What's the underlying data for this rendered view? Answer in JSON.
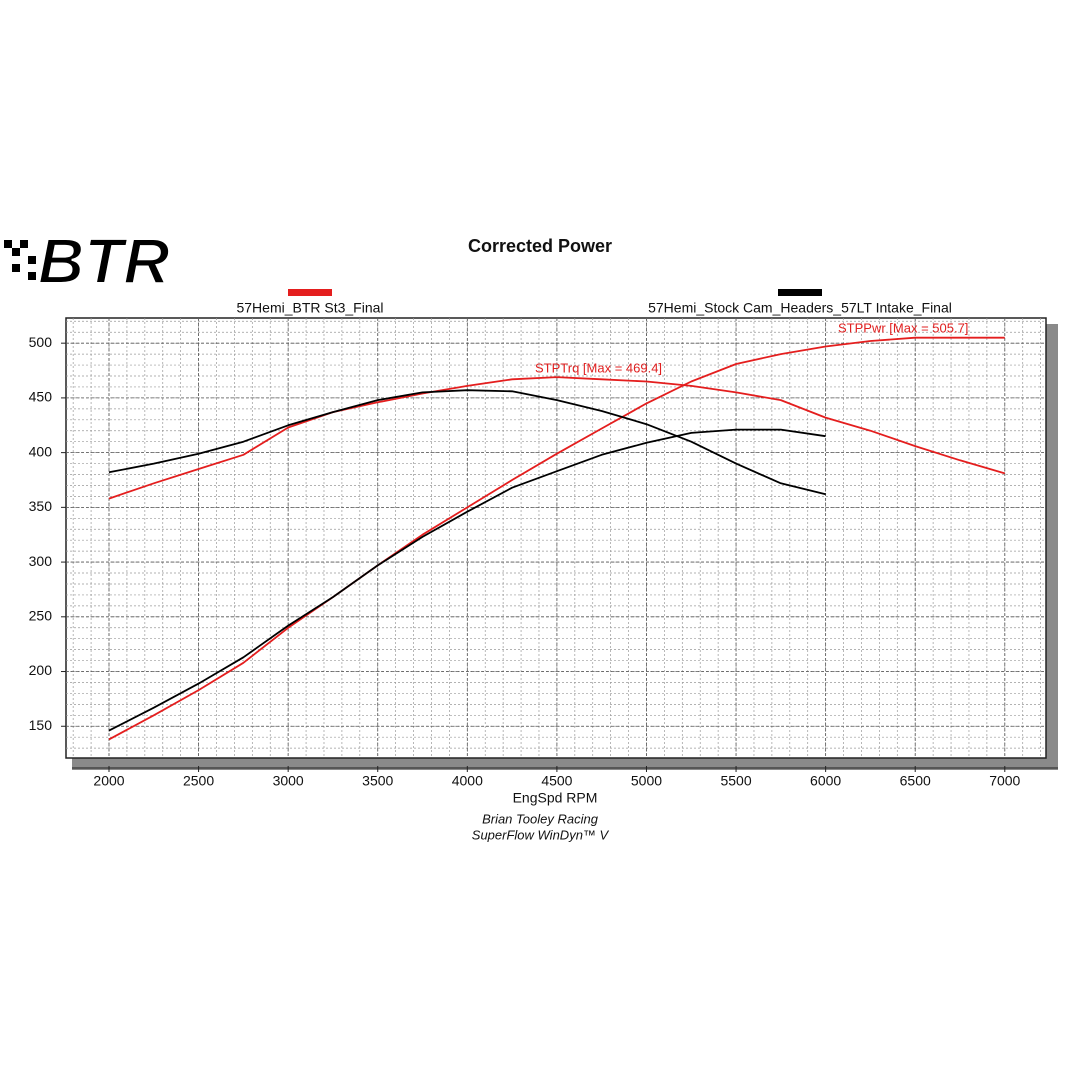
{
  "logo": "BTR",
  "footer": [
    "Brian Tooley Racing",
    "SuperFlow WinDyn™ V"
  ],
  "chart_data": {
    "type": "line",
    "title": "Corrected Power",
    "x_label": "EngSpd RPM",
    "xlim": [
      1760,
      7230
    ],
    "ylim": [
      121,
      523
    ],
    "xticks": [
      2000,
      2500,
      3000,
      3500,
      4000,
      4500,
      5000,
      5500,
      6000,
      6500,
      7000
    ],
    "yticks": [
      150,
      200,
      250,
      300,
      350,
      400,
      450,
      500
    ],
    "grid": true,
    "x": [
      2000,
      2250,
      2500,
      2750,
      3000,
      3250,
      3500,
      3750,
      4000,
      4250,
      4500,
      4750,
      5000,
      5250,
      5500,
      5750,
      6000,
      6250,
      6500,
      6750,
      7000
    ],
    "series": [
      {
        "name": "57Hemi_BTR St3_Final",
        "color": "#e41e1e",
        "torque": [
          358,
          372,
          385,
          398,
          423,
          437,
          446,
          454,
          461,
          467,
          469,
          467,
          465,
          461,
          455,
          448,
          432,
          420,
          406,
          393,
          381
        ],
        "power": [
          138,
          160,
          183,
          208,
          240,
          268,
          297,
          325,
          350,
          375,
          399,
          422,
          445,
          465,
          481,
          490,
          497,
          502,
          505,
          505,
          505
        ]
      },
      {
        "name": "57Hemi_Stock Cam_Headers_57LT Intake_Final",
        "color": "#000000",
        "torque": [
          382,
          390,
          399,
          410,
          425,
          437,
          448,
          455,
          457,
          456,
          448,
          438,
          426,
          410,
          390,
          372,
          362,
          null,
          null,
          null,
          null
        ],
        "power": [
          146,
          167,
          189,
          213,
          242,
          268,
          297,
          323,
          346,
          368,
          383,
          398,
          409,
          418,
          421,
          421,
          415,
          null,
          null,
          null,
          null
        ]
      }
    ],
    "annotations": [
      "STPTrq [Max = 469.4]",
      "STPPwr [Max = 505.7]"
    ]
  }
}
